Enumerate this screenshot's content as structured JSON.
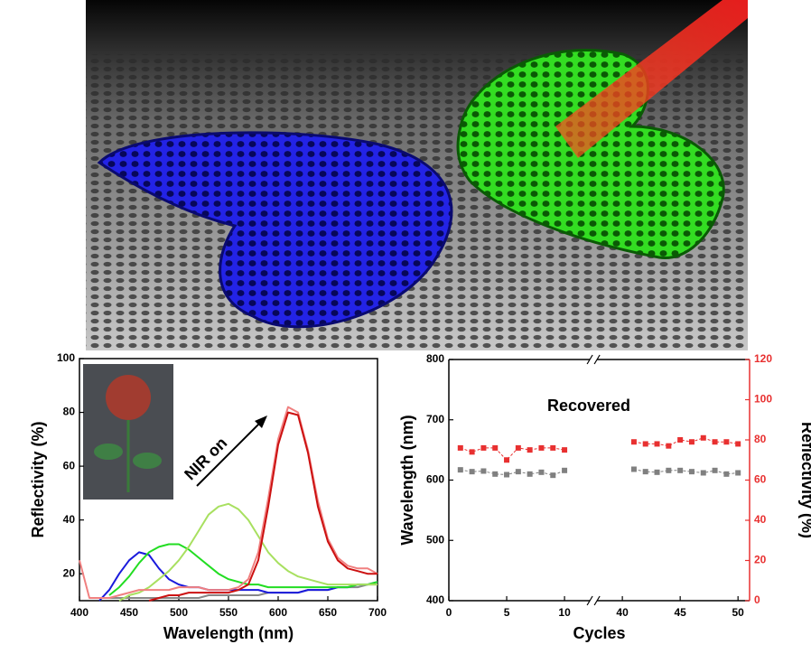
{
  "chart_data": [
    {
      "type": "line",
      "xlabel": "Wavelength (nm)",
      "ylabel": "Reflectivity (%)",
      "annotations": [
        "NIR on"
      ],
      "x": [
        400,
        410,
        420,
        430,
        440,
        450,
        460,
        470,
        480,
        490,
        500,
        510,
        520,
        530,
        540,
        550,
        560,
        570,
        580,
        590,
        600,
        610,
        620,
        630,
        640,
        650,
        660,
        670,
        680,
        690,
        700
      ],
      "series": [
        {
          "color": "#888888",
          "values": [
            null,
            null,
            11,
            11,
            11,
            11,
            11,
            11,
            11,
            11,
            11,
            11,
            11,
            12,
            12,
            12,
            12,
            12,
            12,
            13,
            13,
            13,
            13,
            14,
            14,
            14,
            15,
            15,
            15,
            16,
            16
          ]
        },
        {
          "color": "#1a1adc",
          "values": [
            null,
            null,
            10,
            14,
            20,
            25,
            28,
            27,
            22,
            18,
            16,
            15,
            15,
            14,
            14,
            14,
            14,
            14,
            14,
            13,
            13,
            13,
            13,
            14,
            14,
            14,
            15,
            15,
            16,
            16,
            17
          ]
        },
        {
          "color": "#22dd22",
          "values": [
            null,
            null,
            null,
            12,
            15,
            19,
            24,
            28,
            30,
            31,
            31,
            29,
            26,
            23,
            20,
            18,
            17,
            16,
            16,
            15,
            15,
            15,
            15,
            15,
            15,
            15,
            15,
            15,
            16,
            16,
            17
          ]
        },
        {
          "color": "#a8e060",
          "values": [
            null,
            null,
            null,
            null,
            10,
            12,
            13,
            15,
            18,
            21,
            25,
            30,
            36,
            42,
            45,
            46,
            44,
            40,
            34,
            28,
            24,
            21,
            19,
            18,
            17,
            16,
            16,
            16,
            16,
            16,
            16
          ]
        },
        {
          "color": "#f08080",
          "values": [
            25,
            11,
            11,
            11,
            12,
            13,
            14,
            14,
            14,
            14,
            15,
            15,
            15,
            14,
            14,
            14,
            15,
            18,
            28,
            48,
            70,
            82,
            80,
            66,
            47,
            33,
            26,
            23,
            22,
            22,
            20
          ]
        },
        {
          "color": "#cc1111",
          "values": [
            null,
            null,
            null,
            null,
            null,
            null,
            null,
            10,
            11,
            12,
            12,
            13,
            13,
            13,
            13,
            13,
            14,
            16,
            25,
            45,
            68,
            80,
            79,
            65,
            45,
            32,
            25,
            22,
            21,
            20,
            20
          ]
        }
      ],
      "xlim": [
        400,
        700
      ],
      "xticks": [
        400,
        450,
        500,
        550,
        600,
        650,
        700
      ],
      "ylim": [
        10,
        100
      ],
      "yticks": [
        20,
        40,
        60,
        80,
        100
      ]
    },
    {
      "type": "line",
      "xlabel": "Cycles",
      "ylabel": "Wavelength (nm)",
      "y2label": "Reflectivity (%)",
      "annotations": [
        "Recovered"
      ],
      "x": [
        1,
        2,
        3,
        4,
        5,
        6,
        7,
        8,
        9,
        10,
        41,
        42,
        43,
        44,
        45,
        46,
        47,
        48,
        49,
        50
      ],
      "series": [
        {
          "color": "#808080",
          "marker": "square",
          "values": [
            617,
            614,
            615,
            610,
            609,
            614,
            610,
            613,
            608,
            616,
            618,
            614,
            613,
            616,
            616,
            614,
            612,
            616,
            610,
            612
          ]
        },
        {
          "color": "#e83030",
          "marker": "square",
          "axis": "y2",
          "values": [
            76,
            74,
            76,
            76,
            70,
            76,
            75,
            76,
            76,
            75,
            79,
            78,
            78,
            77,
            80,
            79,
            81,
            79,
            79,
            78
          ]
        }
      ],
      "xlim": [
        0,
        51
      ],
      "xbreak": [
        12.5,
        37.5
      ],
      "xticks": [
        0,
        5,
        10,
        40,
        45,
        50
      ],
      "ylim": [
        400,
        800
      ],
      "yticks": [
        400,
        500,
        600,
        700,
        800
      ],
      "y2lim": [
        0,
        120
      ],
      "y2ticks": [
        0,
        20,
        40,
        60,
        80,
        100,
        120
      ],
      "y2color": "#e83030"
    }
  ]
}
